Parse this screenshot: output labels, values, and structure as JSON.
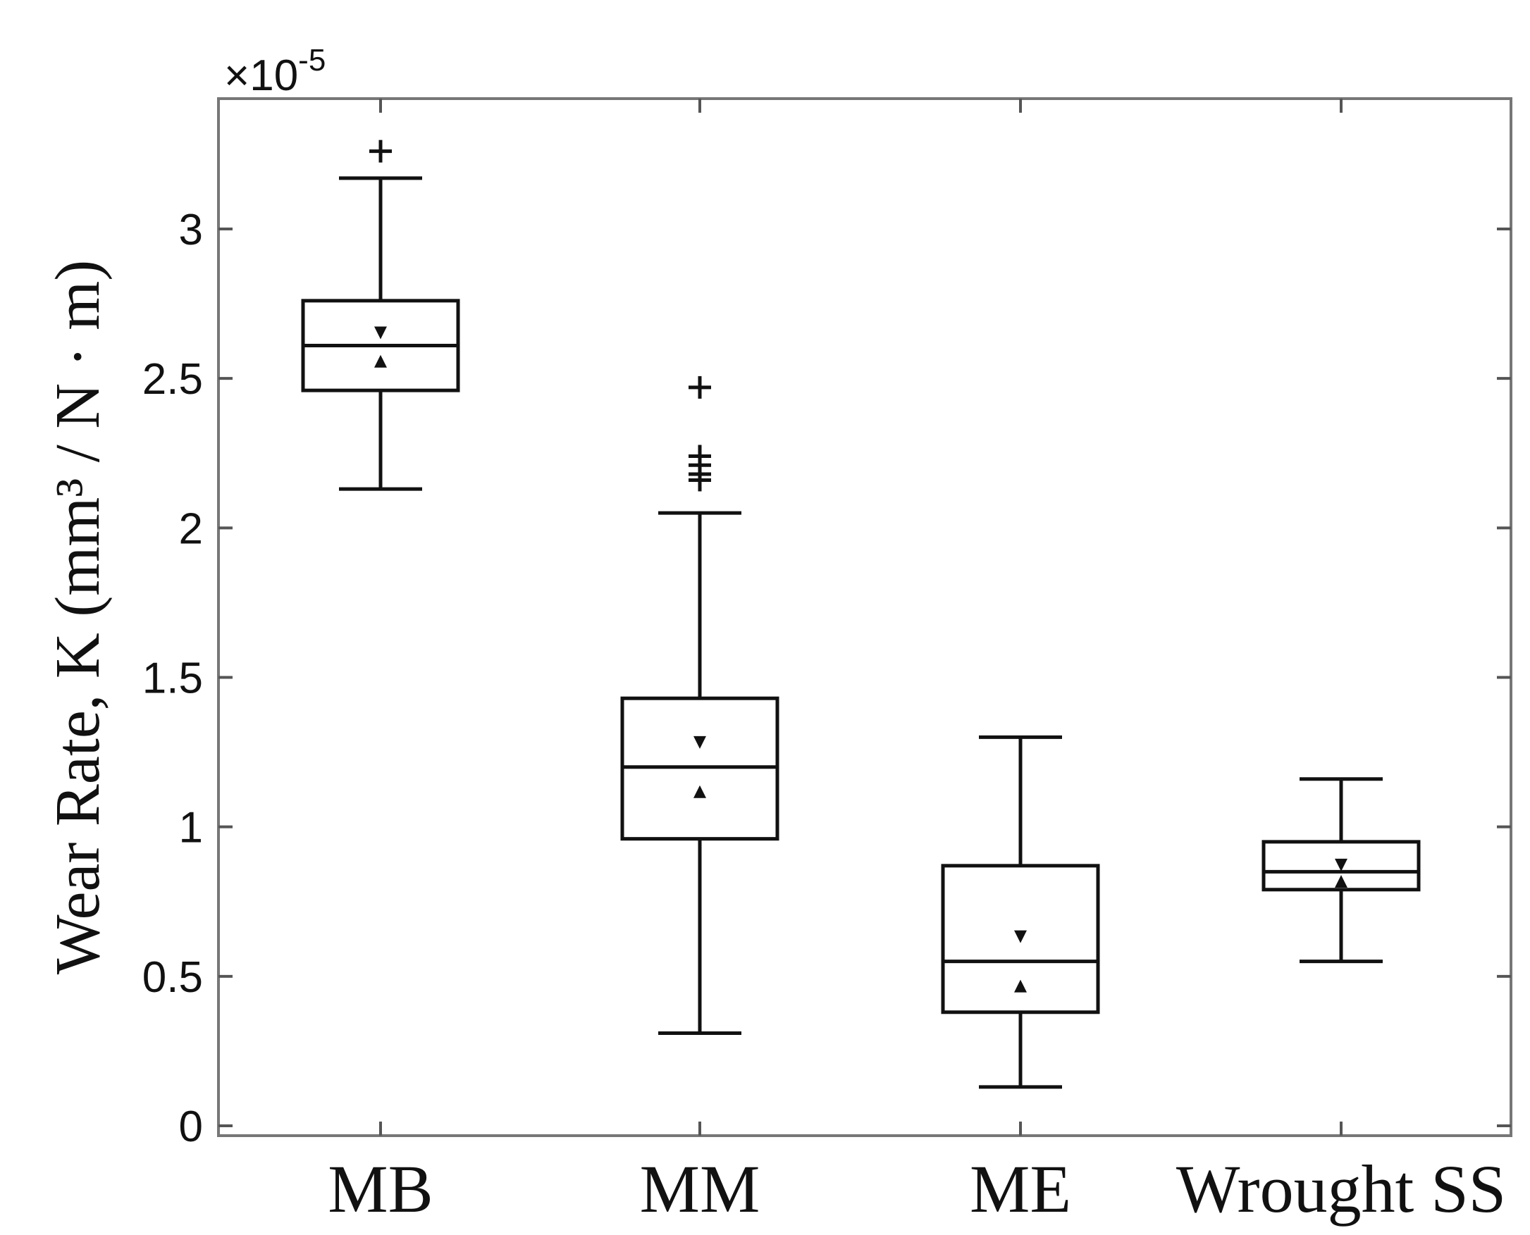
{
  "chart_data": {
    "type": "box",
    "ylabel": "Wear Rate, K (mm³ / N · m)",
    "y_multiplier": "×10",
    "y_multiplier_exponent": "-5",
    "ylim": [
      0,
      3.4
    ],
    "yticks": [
      0,
      0.5,
      1,
      1.5,
      2,
      2.5,
      3
    ],
    "ytick_labels": [
      "0",
      "0.5",
      "1",
      "1.5",
      "2",
      "2.5",
      "3"
    ],
    "categories": [
      "MB",
      "MM",
      "ME",
      "Wrought SS"
    ],
    "boxes": [
      {
        "category": "MB",
        "whisker_low": 2.13,
        "q1": 2.46,
        "median": 2.61,
        "q3": 2.76,
        "whisker_high": 3.17,
        "notch_low": 2.56,
        "notch_high": 2.65,
        "outliers": [
          3.26
        ]
      },
      {
        "category": "MM",
        "whisker_low": 0.31,
        "q1": 0.96,
        "median": 1.2,
        "q3": 1.43,
        "whisker_high": 2.05,
        "notch_low": 1.12,
        "notch_high": 1.28,
        "outliers": [
          2.47,
          2.24,
          2.21,
          2.18,
          2.16
        ]
      },
      {
        "category": "ME",
        "whisker_low": 0.13,
        "q1": 0.38,
        "median": 0.55,
        "q3": 0.87,
        "whisker_high": 1.3,
        "notch_low": 0.47,
        "notch_high": 0.63,
        "outliers": []
      },
      {
        "category": "Wrought SS",
        "whisker_low": 0.55,
        "q1": 0.79,
        "median": 0.85,
        "q3": 0.95,
        "whisker_high": 1.16,
        "notch_low": 0.82,
        "notch_high": 0.87,
        "outliers": []
      }
    ],
    "grid": false,
    "legend": "none"
  }
}
